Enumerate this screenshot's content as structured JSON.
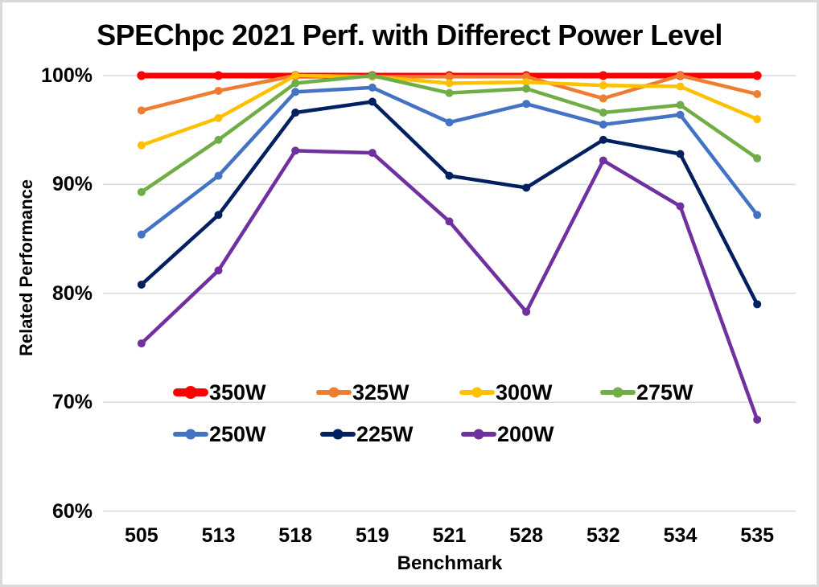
{
  "chart_data": {
    "type": "line",
    "title": "SPEChpc 2021 Perf. with Differect Power Level",
    "xlabel": "Benchmark",
    "ylabel": "Related Performance",
    "categories": [
      "505",
      "513",
      "518",
      "519",
      "521",
      "528",
      "532",
      "534",
      "535"
    ],
    "y_tick_labels": [
      "100%",
      "90%",
      "80%",
      "70%",
      "60%"
    ],
    "y_tick_values": [
      100,
      90,
      80,
      70,
      60
    ],
    "ylim": [
      60,
      100
    ],
    "grid": true,
    "gridline_color": "#D9D9D9",
    "legend_position": "inside-bottom-two-rows",
    "legend_rows": [
      [
        "350W",
        "325W",
        "300W",
        "275W"
      ],
      [
        "250W",
        "225W",
        "200W"
      ]
    ],
    "series": [
      {
        "name": "350W",
        "color": "#FF0000",
        "values": [
          100,
          100,
          100,
          100,
          100,
          100,
          100,
          100,
          100
        ]
      },
      {
        "name": "325W",
        "color": "#ED7D31",
        "values": [
          96.8,
          98.6,
          100,
          99.9,
          99.9,
          99.9,
          97.9,
          100,
          98.3
        ]
      },
      {
        "name": "300W",
        "color": "#FFC000",
        "values": [
          93.6,
          96.1,
          100,
          99.9,
          99.3,
          99.4,
          99.1,
          99.0,
          96.0
        ]
      },
      {
        "name": "275W",
        "color": "#70AD47",
        "values": [
          89.3,
          94.1,
          99.3,
          100,
          98.4,
          98.8,
          96.6,
          97.3,
          92.4
        ]
      },
      {
        "name": "250W",
        "color": "#4472C4",
        "values": [
          85.4,
          90.8,
          98.5,
          98.9,
          95.7,
          97.4,
          95.5,
          96.4,
          87.2
        ]
      },
      {
        "name": "225W",
        "color": "#002060",
        "values": [
          80.8,
          87.2,
          96.6,
          97.6,
          90.8,
          89.7,
          94.1,
          92.8,
          79.0
        ]
      },
      {
        "name": "200W",
        "color": "#7030A0",
        "values": [
          75.4,
          82.1,
          93.1,
          92.9,
          86.6,
          78.3,
          92.2,
          88.0,
          68.4
        ]
      }
    ]
  },
  "frame": {
    "background": "#FFFFFF",
    "border_color": "#D9D9D9"
  }
}
